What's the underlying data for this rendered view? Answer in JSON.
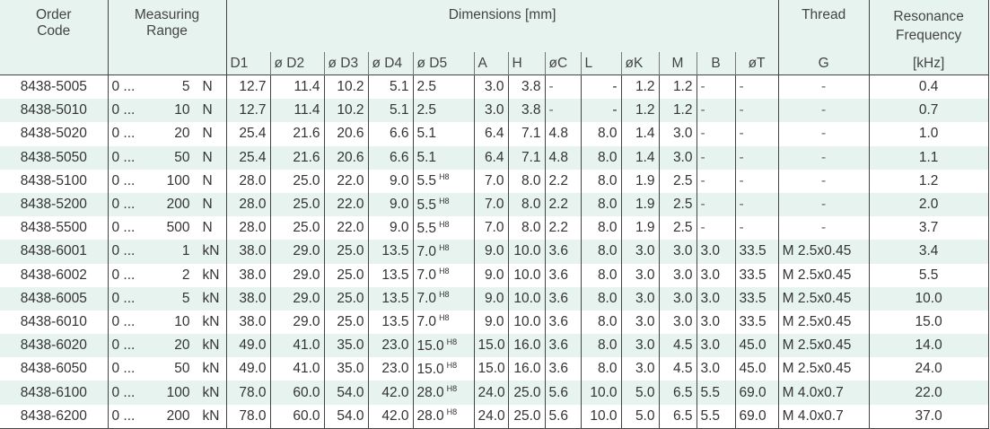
{
  "headers": {
    "order_code": "Order\nCode",
    "measuring_range": "Measuring\nRange",
    "dimensions": "Dimensions [mm]",
    "thread": "Thread",
    "thread_sub": "G",
    "resonance": "Resonance\nFrequency",
    "resonance_sub": "[kHz]",
    "dims": [
      "D1",
      "ø D2",
      "ø D3",
      "ø D4",
      "ø D5",
      "A",
      "H",
      "øC",
      "L",
      "øK",
      "M",
      "B",
      "øT"
    ]
  },
  "d5_superscript": "H8",
  "rows": [
    {
      "code": "8438-5005",
      "from": "0 ...",
      "val": "5",
      "unit": "N",
      "d": [
        "12.7",
        "11.4",
        "10.2",
        "5.1",
        "2.5",
        "3.0",
        "3.8",
        "-",
        "-",
        "1.2",
        "1.2",
        "-",
        "-"
      ],
      "h8": false,
      "g": "-",
      "f": "0.4"
    },
    {
      "code": "8438-5010",
      "from": "0 ...",
      "val": "10",
      "unit": "N",
      "d": [
        "12.7",
        "11.4",
        "10.2",
        "5.1",
        "2.5",
        "3.0",
        "3.8",
        "-",
        "-",
        "1.2",
        "1.2",
        "-",
        "-"
      ],
      "h8": false,
      "g": "-",
      "f": "0.7"
    },
    {
      "code": "8438-5020",
      "from": "0 ...",
      "val": "20",
      "unit": "N",
      "d": [
        "25.4",
        "21.6",
        "20.6",
        "6.6",
        "5.1",
        "6.4",
        "7.1",
        "4.8",
        "8.0",
        "1.4",
        "3.0",
        "-",
        "-"
      ],
      "h8": false,
      "g": "-",
      "f": "1.0"
    },
    {
      "code": "8438-5050",
      "from": "0 ...",
      "val": "50",
      "unit": "N",
      "d": [
        "25.4",
        "21.6",
        "20.6",
        "6.6",
        "5.1",
        "6.4",
        "7.1",
        "4.8",
        "8.0",
        "1.4",
        "3.0",
        "-",
        "-"
      ],
      "h8": false,
      "g": "-",
      "f": "1.1"
    },
    {
      "code": "8438-5100",
      "from": "0 ...",
      "val": "100",
      "unit": "N",
      "d": [
        "28.0",
        "25.0",
        "22.0",
        "9.0",
        "5.5",
        "7.0",
        "8.0",
        "2.2",
        "8.0",
        "1.9",
        "2.5",
        "-",
        "-"
      ],
      "h8": true,
      "g": "-",
      "f": "1.2"
    },
    {
      "code": "8438-5200",
      "from": "0 ...",
      "val": "200",
      "unit": "N",
      "d": [
        "28.0",
        "25.0",
        "22.0",
        "9.0",
        "5.5",
        "7.0",
        "8.0",
        "2.2",
        "8.0",
        "1.9",
        "2.5",
        "-",
        "-"
      ],
      "h8": true,
      "g": "-",
      "f": "2.0"
    },
    {
      "code": "8438-5500",
      "from": "0 ...",
      "val": "500",
      "unit": "N",
      "d": [
        "28.0",
        "25.0",
        "22.0",
        "9.0",
        "5.5",
        "7.0",
        "8.0",
        "2.2",
        "8.0",
        "1.9",
        "2.5",
        "-",
        "-"
      ],
      "h8": true,
      "g": "-",
      "f": "3.7"
    },
    {
      "code": "8438-6001",
      "from": "0 ...",
      "val": "1",
      "unit": "kN",
      "d": [
        "38.0",
        "29.0",
        "25.0",
        "13.5",
        "7.0",
        "9.0",
        "10.0",
        "3.6",
        "8.0",
        "3.0",
        "3.0",
        "3.0",
        "33.5"
      ],
      "h8": true,
      "g": "M 2.5x0.45",
      "f": "3.4"
    },
    {
      "code": "8438-6002",
      "from": "0 ...",
      "val": "2",
      "unit": "kN",
      "d": [
        "38.0",
        "29.0",
        "25.0",
        "13.5",
        "7.0",
        "9.0",
        "10.0",
        "3.6",
        "8.0",
        "3.0",
        "3.0",
        "3.0",
        "33.5"
      ],
      "h8": true,
      "g": "M 2.5x0.45",
      "f": "5.5"
    },
    {
      "code": "8438-6005",
      "from": "0 ...",
      "val": "5",
      "unit": "kN",
      "d": [
        "38.0",
        "29.0",
        "25.0",
        "13.5",
        "7.0",
        "9.0",
        "10.0",
        "3.6",
        "8.0",
        "3.0",
        "3.0",
        "3.0",
        "33.5"
      ],
      "h8": true,
      "g": "M 2.5x0.45",
      "f": "10.0"
    },
    {
      "code": "8438-6010",
      "from": "0 ...",
      "val": "10",
      "unit": "kN",
      "d": [
        "38.0",
        "29.0",
        "25.0",
        "13.5",
        "7.0",
        "9.0",
        "10.0",
        "3.6",
        "8.0",
        "3.0",
        "3.0",
        "3.0",
        "33.5"
      ],
      "h8": true,
      "g": "M 2.5x0.45",
      "f": "15.0"
    },
    {
      "code": "8438-6020",
      "from": "0 ...",
      "val": "20",
      "unit": "kN",
      "d": [
        "49.0",
        "41.0",
        "35.0",
        "23.0",
        "15.0",
        "15.0",
        "16.0",
        "3.6",
        "8.0",
        "3.0",
        "4.5",
        "3.0",
        "45.0"
      ],
      "h8": true,
      "g": "M 2.5x0.45",
      "f": "14.0"
    },
    {
      "code": "8438-6050",
      "from": "0 ...",
      "val": "50",
      "unit": "kN",
      "d": [
        "49.0",
        "41.0",
        "35.0",
        "23.0",
        "15.0",
        "15.0",
        "16.0",
        "3.6",
        "8.0",
        "3.0",
        "4.5",
        "3.0",
        "45.0"
      ],
      "h8": true,
      "g": "M 2.5x0.45",
      "f": "24.0"
    },
    {
      "code": "8438-6100",
      "from": "0 ...",
      "val": "100",
      "unit": "kN",
      "d": [
        "78.0",
        "60.0",
        "54.0",
        "42.0",
        "28.0",
        "24.0",
        "25.0",
        "5.6",
        "10.0",
        "5.0",
        "6.5",
        "5.5",
        "69.0"
      ],
      "h8": true,
      "g": "M 4.0x0.7",
      "f": "22.0"
    },
    {
      "code": "8438-6200",
      "from": "0 ...",
      "val": "200",
      "unit": "kN",
      "d": [
        "78.0",
        "60.0",
        "54.0",
        "42.0",
        "28.0",
        "24.0",
        "25.0",
        "5.6",
        "10.0",
        "5.0",
        "6.5",
        "5.5",
        "69.0"
      ],
      "h8": true,
      "g": "M 4.0x0.7",
      "f": "37.0"
    }
  ]
}
